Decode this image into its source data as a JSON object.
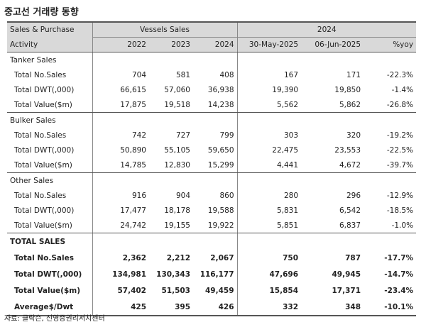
{
  "title": "중고선 거래량 동향",
  "header": {
    "row1": {
      "col0": "Sales & Purchase",
      "vessels": "Vessels Sales",
      "year": "2024"
    },
    "row2": [
      "Activity",
      "2022",
      "2023",
      "2024",
      "30-May-2025",
      "06-Jun-2025",
      "%yoy"
    ]
  },
  "sections": [
    {
      "name": "Tanker Sales",
      "rows": [
        [
          "Total No.Sales",
          "704",
          "581",
          "408",
          "167",
          "171",
          "-22.3%"
        ],
        [
          "Total DWT(,000)",
          "66,615",
          "57,060",
          "36,938",
          "19,390",
          "19,850",
          "-1.4%"
        ],
        [
          "Total Value($m)",
          "17,875",
          "19,518",
          "14,238",
          "5,562",
          "5,862",
          "-26.8%"
        ]
      ]
    },
    {
      "name": "Bulker Sales",
      "rows": [
        [
          "Total No.Sales",
          "742",
          "727",
          "799",
          "303",
          "320",
          "-19.2%"
        ],
        [
          "Total DWT(,000)",
          "50,890",
          "55,105",
          "59,650",
          "22,475",
          "23,553",
          "-22.5%"
        ],
        [
          "Total Value($m)",
          "14,785",
          "12,830",
          "15,299",
          "4,441",
          "4,672",
          "-39.7%"
        ]
      ]
    },
    {
      "name": "Other Sales",
      "rows": [
        [
          "Total No.Sales",
          "916",
          "904",
          "860",
          "280",
          "296",
          "-12.9%"
        ],
        [
          "Total DWT(,000)",
          "17,477",
          "18,178",
          "19,588",
          "5,831",
          "6,542",
          "-18.5%"
        ],
        [
          "Total Value($m)",
          "24,742",
          "19,155",
          "19,922",
          "5,851",
          "6,837",
          "-1.0%"
        ]
      ]
    },
    {
      "name": "TOTAL SALES",
      "rows": [
        [
          "Total No.Sales",
          "2,362",
          "2,212",
          "2,067",
          "750",
          "787",
          "-17.7%"
        ],
        [
          "Total DWT(,000)",
          "134,981",
          "130,343",
          "116,177",
          "47,696",
          "49,945",
          "-14.7%"
        ],
        [
          "Total Value($m)",
          "57,402",
          "51,503",
          "49,459",
          "15,854",
          "17,371",
          "-23.4%"
        ],
        [
          "Average$/Dwt",
          "425",
          "395",
          "426",
          "332",
          "348",
          "-10.1%"
        ]
      ]
    }
  ],
  "source": "자료: 클락슨, 신영증권리서치센터"
}
